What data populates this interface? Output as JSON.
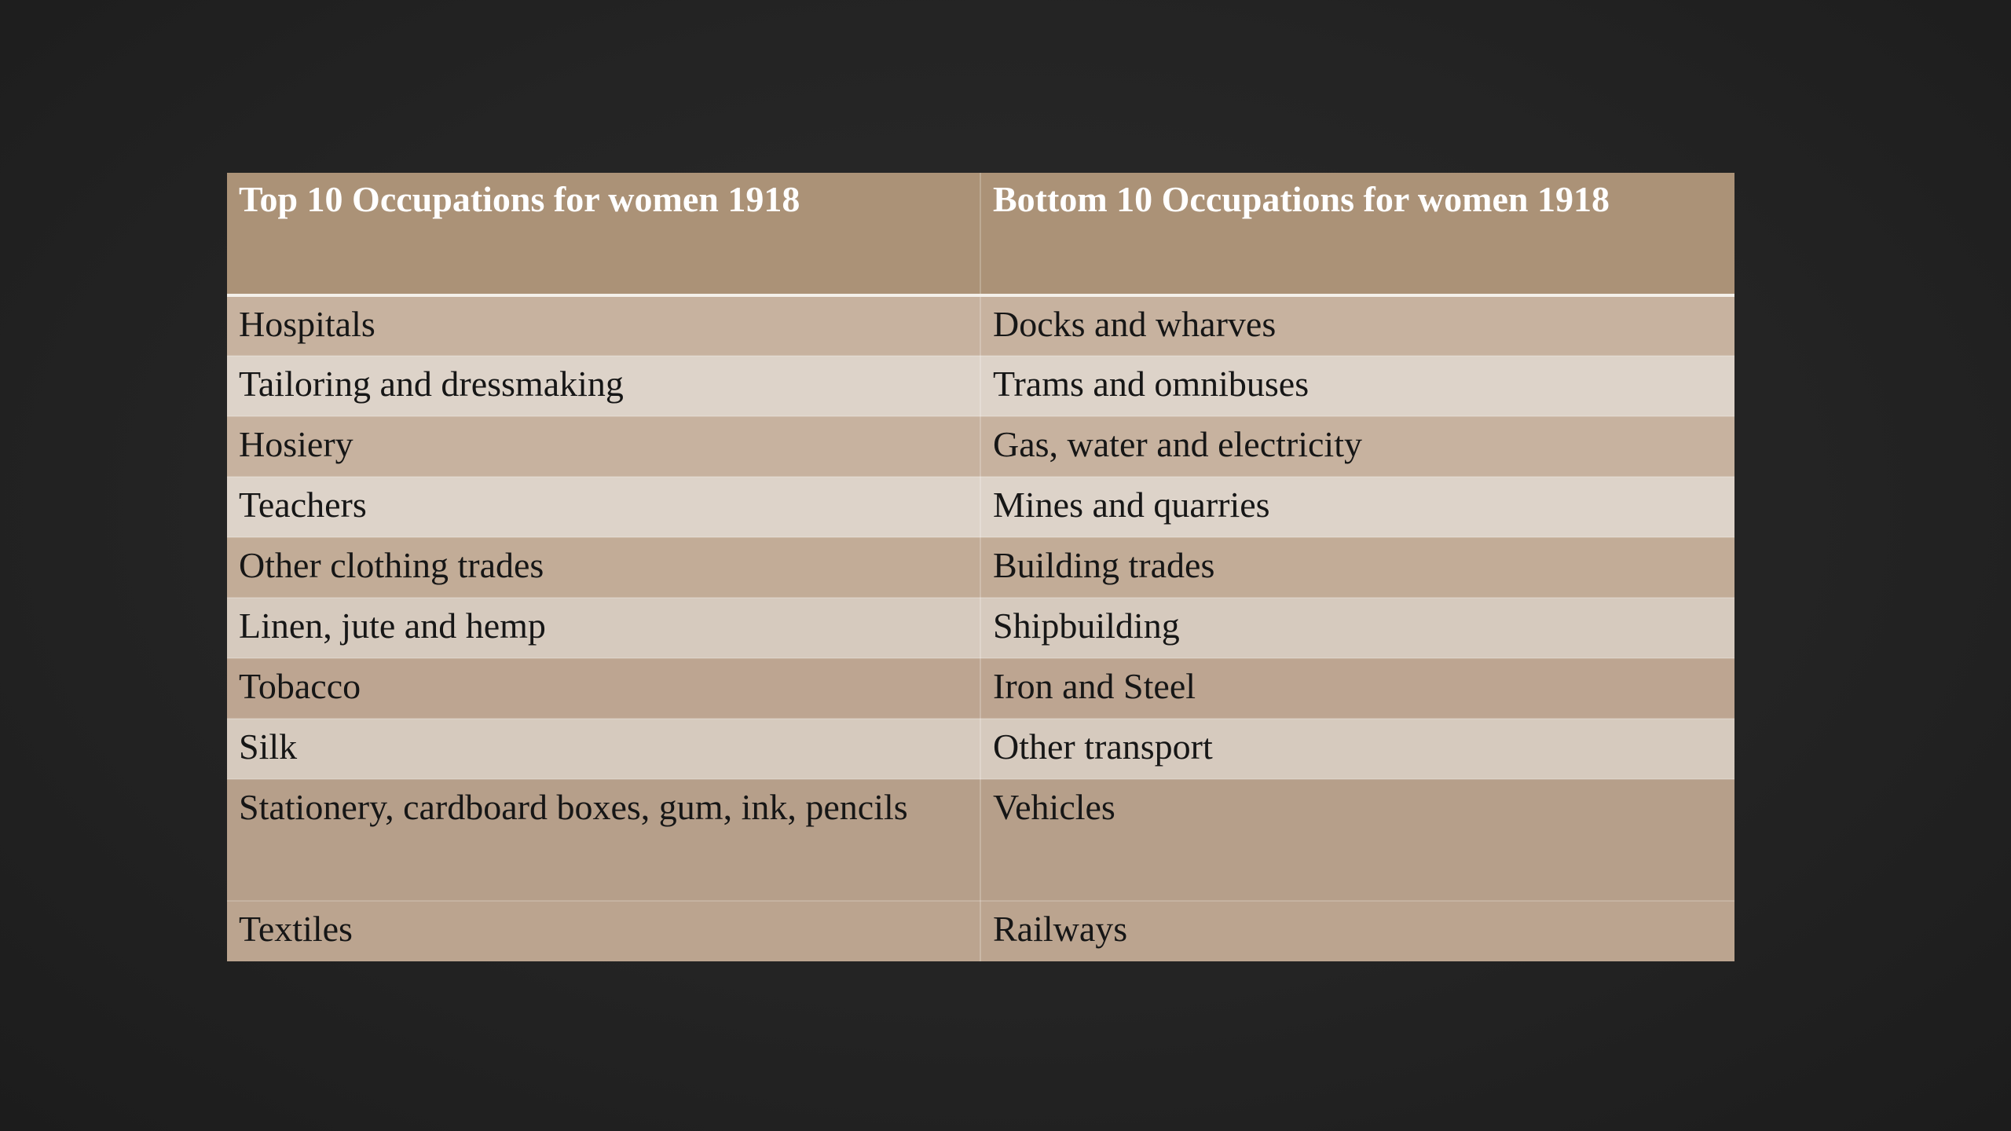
{
  "table": {
    "headers": [
      "Top 10 Occupations for women 1918",
      "Bottom 10 Occupations for women 1918"
    ],
    "rows": [
      [
        "Hospitals",
        "Docks and wharves"
      ],
      [
        "Tailoring and dressmaking",
        "Trams and omnibuses"
      ],
      [
        "Hosiery",
        "Gas, water and electricity"
      ],
      [
        "Teachers",
        "Mines and quarries"
      ],
      [
        "Other clothing trades",
        "Building trades"
      ],
      [
        "Linen, jute and hemp",
        "Shipbuilding"
      ],
      [
        "Tobacco",
        "Iron and Steel"
      ],
      [
        "Silk",
        "Other transport"
      ],
      [
        "Stationery, cardboard boxes, gum, ink, pencils",
        "Vehicles"
      ],
      [
        "Textiles",
        "Railways"
      ]
    ]
  },
  "colors": {
    "background": "#242424",
    "header": "#ab9277",
    "row_dark": "#c7b29f",
    "row_light": "#ddd3c9",
    "header_text": "#ffffff",
    "body_text": "#161616"
  }
}
